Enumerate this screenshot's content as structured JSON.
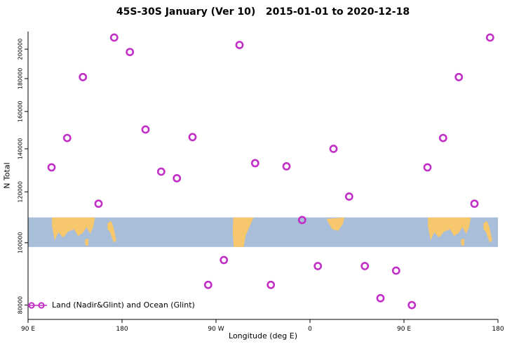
{
  "colors": {
    "point": "#c12fc7",
    "ocean": "#a9bed9",
    "land": "#f6c76d",
    "axis": "#000000"
  },
  "chart_data": {
    "type": "scatter",
    "title": "45S-30S January (Ver 10)   2015-01-01 to 2020-12-18",
    "xlabel": "Longitude (deg E)",
    "ylabel": "N Total",
    "legend": "Land (Nadir&Glint) and Ocean (Glint)",
    "x_axis_note": "longitude axis is continuous deg E and wraps past 360 (tick sequence repeats 90 E, 180)",
    "y_scale": "log",
    "xlim": [
      90,
      540
    ],
    "ylim": [
      76000,
      213000
    ],
    "x_ticks": [
      {
        "value": 90,
        "label": "90 E"
      },
      {
        "value": 180,
        "label": "180"
      },
      {
        "value": 270,
        "label": "90 W"
      },
      {
        "value": 360,
        "label": "0"
      },
      {
        "value": 450,
        "label": "90 E"
      },
      {
        "value": 540,
        "label": "180"
      }
    ],
    "y_ticks": [
      80000,
      100000,
      120000,
      140000,
      160000,
      180000,
      200000
    ],
    "points": [
      {
        "lon": 112.5,
        "n": 131000
      },
      {
        "lon": 127.5,
        "n": 145500
      },
      {
        "lon": 142.5,
        "n": 181000
      },
      {
        "lon": 157.5,
        "n": 115000
      },
      {
        "lon": 172.5,
        "n": 208500
      },
      {
        "lon": 187.5,
        "n": 198000
      },
      {
        "lon": 202.5,
        "n": 150000
      },
      {
        "lon": 217.5,
        "n": 129000
      },
      {
        "lon": 232.5,
        "n": 126000
      },
      {
        "lon": 247.5,
        "n": 146000
      },
      {
        "lon": 262.5,
        "n": 86000
      },
      {
        "lon": 277.5,
        "n": 94000
      },
      {
        "lon": 292.5,
        "n": 203000
      },
      {
        "lon": 307.5,
        "n": 133000
      },
      {
        "lon": 322.5,
        "n": 86000
      },
      {
        "lon": 337.5,
        "n": 131500
      },
      {
        "lon": 352.5,
        "n": 108500
      },
      {
        "lon": 367.5,
        "n": 92000
      },
      {
        "lon": 382.5,
        "n": 140000
      },
      {
        "lon": 397.5,
        "n": 118000
      },
      {
        "lon": 412.5,
        "n": 92000
      },
      {
        "lon": 427.5,
        "n": 82000
      },
      {
        "lon": 442.5,
        "n": 90500
      },
      {
        "lon": 457.5,
        "n": 80000
      },
      {
        "lon": 472.5,
        "n": 131000
      },
      {
        "lon": 487.5,
        "n": 145500
      },
      {
        "lon": 502.5,
        "n": 181000
      },
      {
        "lon": 517.5,
        "n": 115000
      },
      {
        "lon": 532.5,
        "n": 208500
      }
    ],
    "map_band": {
      "value_top": 109500,
      "value_bottom": 98500,
      "land_regions": [
        {
          "name": "australia",
          "offsets": [
            0,
            360
          ],
          "poly": [
            [
              113,
              0
            ],
            [
              154,
              0
            ],
            [
              152.5,
              0.32
            ],
            [
              149.5,
              0.55
            ],
            [
              146,
              0.33
            ],
            [
              142.5,
              0.52
            ],
            [
              138,
              0.63
            ],
            [
              134,
              0.4
            ],
            [
              128.5,
              0.48
            ],
            [
              123.5,
              0.68
            ],
            [
              119,
              0.5
            ],
            [
              115.5,
              0.78
            ],
            [
              113,
              0.3
            ]
          ]
        },
        {
          "name": "tasmania",
          "offsets": [
            0,
            360
          ],
          "poly": [
            [
              144.5,
              0.75
            ],
            [
              148,
              0.72
            ],
            [
              147.5,
              0.97
            ],
            [
              144.8,
              0.93
            ]
          ]
        },
        {
          "name": "new-zealand",
          "offsets": [
            0,
            360
          ],
          "poly": [
            [
              166,
              0.2
            ],
            [
              169.5,
              0.12
            ],
            [
              172,
              0.35
            ],
            [
              174.5,
              0.78
            ],
            [
              172,
              0.85
            ],
            [
              168.5,
              0.5
            ],
            [
              166,
              0.38
            ]
          ]
        },
        {
          "name": "south-america",
          "offsets": [
            0
          ],
          "poly": [
            [
              286.5,
              0
            ],
            [
              306,
              0
            ],
            [
              302.5,
              0.28
            ],
            [
              298.5,
              0.6
            ],
            [
              296.5,
              1
            ],
            [
              287,
              1
            ],
            [
              286,
              0.5
            ]
          ]
        },
        {
          "name": "southern-africa",
          "offsets": [
            360
          ],
          "poly": [
            [
              16,
              0.05
            ],
            [
              33,
              0
            ],
            [
              31.5,
              0.22
            ],
            [
              27,
              0.45
            ],
            [
              21.5,
              0.4
            ],
            [
              17.5,
              0.18
            ]
          ]
        }
      ]
    }
  }
}
